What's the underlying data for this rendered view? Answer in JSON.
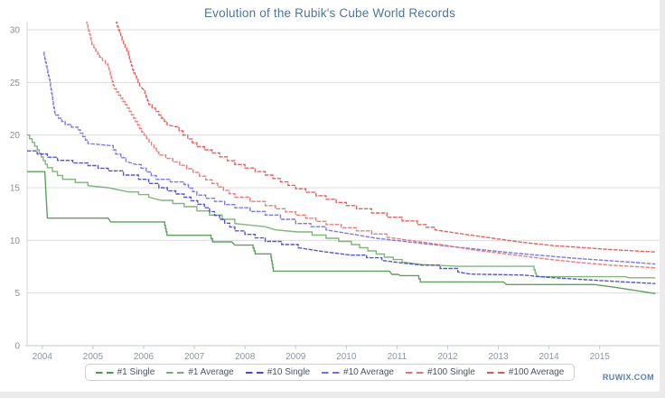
{
  "page": {
    "watermark": "RUWIX.COM",
    "background_color": "#ffffff",
    "edge_strip_color": "#ebebeb"
  },
  "chart_data": {
    "type": "line",
    "title": "Evolution of the Rubik's Cube World Records",
    "title_color": "#4d759b",
    "xlabel": "",
    "ylabel": "",
    "x_domain": [
      2003.7,
      2016.2
    ],
    "ylim": [
      0,
      30
    ],
    "x_ticks": [
      2004,
      2005,
      2006,
      2007,
      2008,
      2009,
      2010,
      2011,
      2012,
      2013,
      2014,
      2015
    ],
    "y_ticks": [
      0,
      5,
      10,
      15,
      20,
      25,
      30
    ],
    "grid": "horizontal",
    "legend_position": "bottom",
    "axis_label_color": "#8b95a3",
    "grid_color": "#dcdcdc",
    "series": [
      {
        "name": "#1 Single",
        "color": "#4d9a4d",
        "points": [
          [
            2003.7,
            16.53
          ],
          [
            2004.05,
            16.53
          ],
          [
            2004.1,
            12.11
          ],
          [
            2005.3,
            12.11
          ],
          [
            2005.35,
            11.75
          ],
          [
            2006.4,
            11.75
          ],
          [
            2006.46,
            10.48
          ],
          [
            2007.3,
            10.48
          ],
          [
            2007.36,
            9.86
          ],
          [
            2007.74,
            9.86
          ],
          [
            2007.8,
            9.55
          ],
          [
            2008.14,
            9.55
          ],
          [
            2008.2,
            8.72
          ],
          [
            2008.5,
            8.72
          ],
          [
            2008.56,
            7.08
          ],
          [
            2010.85,
            7.08
          ],
          [
            2010.9,
            6.77
          ],
          [
            2011.02,
            6.77
          ],
          [
            2011.07,
            6.65
          ],
          [
            2011.4,
            6.65
          ],
          [
            2011.46,
            6.05
          ],
          [
            2013.1,
            6.05
          ],
          [
            2013.16,
            5.8
          ],
          [
            2014.9,
            5.8
          ],
          [
            2015.3,
            5.55
          ],
          [
            2015.7,
            5.25
          ],
          [
            2016.1,
            4.95
          ]
        ]
      },
      {
        "name": "#1 Average",
        "color": "#72b26c",
        "points": [
          [
            2003.7,
            20.0
          ],
          [
            2003.9,
            18.6
          ],
          [
            2004.1,
            16.9
          ],
          [
            2004.4,
            15.8
          ],
          [
            2004.9,
            15.2
          ],
          [
            2005.3,
            15.0
          ],
          [
            2005.7,
            14.6
          ],
          [
            2006.1,
            14.1
          ],
          [
            2006.35,
            13.8
          ],
          [
            2006.8,
            13.2
          ],
          [
            2007.3,
            12.4
          ],
          [
            2007.8,
            11.6
          ],
          [
            2008.4,
            11.3
          ],
          [
            2008.6,
            11.0
          ],
          [
            2009.05,
            10.8
          ],
          [
            2009.6,
            10.2
          ],
          [
            2010.1,
            9.6
          ],
          [
            2010.75,
            8.4
          ],
          [
            2011.1,
            7.95
          ],
          [
            2011.5,
            7.7
          ],
          [
            2012.2,
            7.53
          ],
          [
            2013.68,
            7.53
          ],
          [
            2013.75,
            6.55
          ],
          [
            2015.5,
            6.55
          ],
          [
            2015.58,
            6.45
          ],
          [
            2016.1,
            6.45
          ]
        ]
      },
      {
        "name": "#10 Single",
        "color": "#4747cf",
        "points": [
          [
            2003.7,
            18.5
          ],
          [
            2004.3,
            17.6
          ],
          [
            2004.9,
            17.1
          ],
          [
            2005.3,
            16.6
          ],
          [
            2005.9,
            15.8
          ],
          [
            2006.3,
            15.0
          ],
          [
            2006.8,
            14.1
          ],
          [
            2007.2,
            13.1
          ],
          [
            2007.5,
            12.0
          ],
          [
            2007.8,
            10.9
          ],
          [
            2008.4,
            9.9
          ],
          [
            2009.05,
            9.3
          ],
          [
            2009.6,
            8.9
          ],
          [
            2010.1,
            8.6
          ],
          [
            2010.7,
            8.1
          ],
          [
            2011.1,
            7.85
          ],
          [
            2011.5,
            7.65
          ],
          [
            2012.2,
            7.0
          ],
          [
            2012.45,
            6.8
          ],
          [
            2013.5,
            6.7
          ],
          [
            2013.95,
            6.5
          ],
          [
            2014.6,
            6.3
          ],
          [
            2015.3,
            6.1
          ],
          [
            2016.1,
            5.9
          ]
        ]
      },
      {
        "name": "#10 Average",
        "color": "#6f6fe6",
        "points": [
          [
            2004.02,
            27.85
          ],
          [
            2004.15,
            25.0
          ],
          [
            2004.25,
            21.9
          ],
          [
            2004.45,
            21.0
          ],
          [
            2004.7,
            20.5
          ],
          [
            2004.9,
            19.2
          ],
          [
            2005.35,
            19.0
          ],
          [
            2005.45,
            18.2
          ],
          [
            2005.65,
            17.5
          ],
          [
            2005.85,
            17.2
          ],
          [
            2006.25,
            15.8
          ],
          [
            2006.8,
            15.3
          ],
          [
            2007.05,
            14.3
          ],
          [
            2007.4,
            13.7
          ],
          [
            2007.8,
            13.1
          ],
          [
            2008.4,
            12.4
          ],
          [
            2009.0,
            11.6
          ],
          [
            2009.6,
            11.0
          ],
          [
            2010.1,
            10.6
          ],
          [
            2010.6,
            10.2
          ],
          [
            2011.15,
            9.9
          ],
          [
            2011.7,
            9.6
          ],
          [
            2012.3,
            9.3
          ],
          [
            2012.8,
            9.05
          ],
          [
            2013.3,
            8.8
          ],
          [
            2013.9,
            8.55
          ],
          [
            2014.5,
            8.3
          ],
          [
            2015.1,
            8.1
          ],
          [
            2015.7,
            7.9
          ],
          [
            2016.1,
            7.75
          ]
        ]
      },
      {
        "name": "#100 Single",
        "color": "#ec7070",
        "points": [
          [
            2004.78,
            32.0
          ],
          [
            2004.9,
            30.2
          ],
          [
            2004.98,
            28.6
          ],
          [
            2005.13,
            27.4
          ],
          [
            2005.3,
            26.4
          ],
          [
            2005.42,
            24.4
          ],
          [
            2005.63,
            22.9
          ],
          [
            2005.8,
            21.6
          ],
          [
            2005.96,
            20.3
          ],
          [
            2006.3,
            18.1
          ],
          [
            2006.85,
            16.8
          ],
          [
            2007.35,
            15.4
          ],
          [
            2007.8,
            14.1
          ],
          [
            2008.4,
            13.3
          ],
          [
            2009.0,
            12.4
          ],
          [
            2009.6,
            11.5
          ],
          [
            2010.2,
            10.9
          ],
          [
            2010.8,
            10.3
          ],
          [
            2011.4,
            9.9
          ],
          [
            2012.0,
            9.5
          ],
          [
            2012.5,
            9.1
          ],
          [
            2013.0,
            8.8
          ],
          [
            2013.5,
            8.5
          ],
          [
            2014.0,
            8.2
          ],
          [
            2014.6,
            7.9
          ],
          [
            2015.2,
            7.65
          ],
          [
            2016.1,
            7.4
          ]
        ]
      },
      {
        "name": "#100 Average",
        "color": "#e45555",
        "points": [
          [
            2005.38,
            32.0
          ],
          [
            2005.5,
            30.0
          ],
          [
            2005.6,
            28.7
          ],
          [
            2005.7,
            27.6
          ],
          [
            2005.8,
            25.9
          ],
          [
            2005.92,
            24.7
          ],
          [
            2006.0,
            24.3
          ],
          [
            2006.1,
            22.9
          ],
          [
            2006.3,
            21.9
          ],
          [
            2006.46,
            21.0
          ],
          [
            2006.62,
            20.8
          ],
          [
            2006.78,
            20.0
          ],
          [
            2007.05,
            18.9
          ],
          [
            2007.35,
            18.3
          ],
          [
            2007.8,
            17.2
          ],
          [
            2008.4,
            16.2
          ],
          [
            2009.0,
            14.9
          ],
          [
            2009.6,
            13.9
          ],
          [
            2010.2,
            13.0
          ],
          [
            2010.8,
            12.2
          ],
          [
            2011.4,
            11.5
          ],
          [
            2011.75,
            11.0
          ],
          [
            2012.3,
            10.6
          ],
          [
            2012.9,
            10.2
          ],
          [
            2013.5,
            9.8
          ],
          [
            2014.1,
            9.5
          ],
          [
            2014.7,
            9.3
          ],
          [
            2015.3,
            9.1
          ],
          [
            2016.1,
            8.9
          ]
        ]
      }
    ]
  }
}
